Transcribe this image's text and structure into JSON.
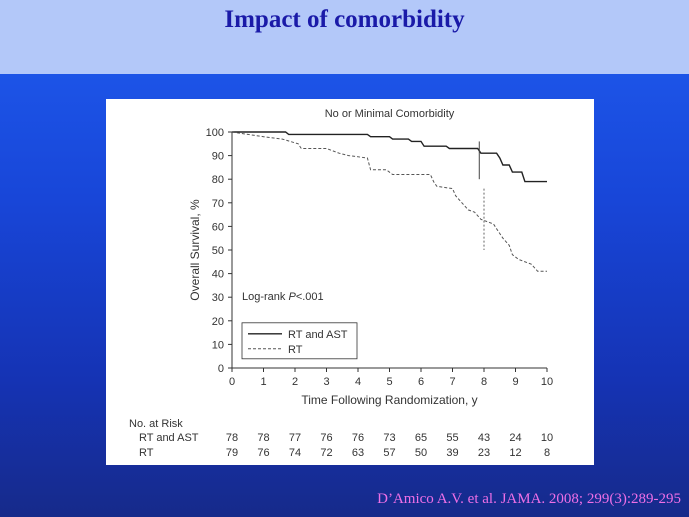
{
  "slide": {
    "title": "Impact of comorbidity",
    "citation": "D’Amico A.V. et al. JAMA. 2008; 299(3):289-295"
  },
  "colors": {
    "header_bg": "#b3c8f9",
    "title": "#1a1aa8",
    "citation": "#ee6fe6",
    "background_top": "#1f5cf0",
    "background_bottom": "#162a8a"
  },
  "chart_data": {
    "type": "line",
    "title": "No or Minimal Comorbidity",
    "xlabel": "Time Following Randomization, y",
    "ylabel": "Overall Survival, %",
    "xlim": [
      0,
      10
    ],
    "ylim": [
      0,
      100
    ],
    "xticks": [
      "0",
      "1",
      "2",
      "3",
      "4",
      "5",
      "6",
      "7",
      "8",
      "9",
      "10"
    ],
    "yticks": [
      "0",
      "10",
      "20",
      "30",
      "40",
      "50",
      "60",
      "70",
      "80",
      "90",
      "100"
    ],
    "annotation_prefix": "Log-rank ",
    "annotation_p": "P",
    "annotation_value": "<.001",
    "legend_position": "lower-left",
    "series": [
      {
        "name": "RT and AST",
        "style": "solid",
        "points": [
          [
            0,
            100
          ],
          [
            1.7,
            100
          ],
          [
            1.8,
            99
          ],
          [
            4.3,
            99
          ],
          [
            4.4,
            98
          ],
          [
            5.0,
            98
          ],
          [
            5.1,
            97
          ],
          [
            5.6,
            97
          ],
          [
            5.7,
            96
          ],
          [
            6.0,
            96
          ],
          [
            6.1,
            94
          ],
          [
            6.8,
            94
          ],
          [
            6.9,
            93
          ],
          [
            7.8,
            93
          ],
          [
            7.9,
            91
          ],
          [
            8.4,
            91
          ],
          [
            8.5,
            89
          ],
          [
            8.6,
            86
          ],
          [
            8.8,
            86
          ],
          [
            8.9,
            83
          ],
          [
            9.2,
            83
          ],
          [
            9.3,
            79
          ],
          [
            10.0,
            79
          ]
        ],
        "censor": {
          "x": 7.85,
          "y_from": 96,
          "y_to": 80
        }
      },
      {
        "name": "RT",
        "style": "dashed",
        "points": [
          [
            0,
            100
          ],
          [
            0.5,
            99
          ],
          [
            1.0,
            98
          ],
          [
            1.6,
            97
          ],
          [
            2.1,
            95
          ],
          [
            2.2,
            93
          ],
          [
            3.0,
            93
          ],
          [
            3.4,
            91
          ],
          [
            3.7,
            90
          ],
          [
            4.3,
            89
          ],
          [
            4.4,
            84
          ],
          [
            4.9,
            84
          ],
          [
            5.1,
            82
          ],
          [
            6.3,
            82
          ],
          [
            6.4,
            79
          ],
          [
            6.5,
            77
          ],
          [
            7.0,
            76
          ],
          [
            7.1,
            73
          ],
          [
            7.3,
            70
          ],
          [
            7.5,
            67
          ],
          [
            7.7,
            66
          ],
          [
            7.9,
            63
          ],
          [
            8.3,
            61
          ],
          [
            8.4,
            59
          ],
          [
            8.6,
            55
          ],
          [
            8.8,
            52
          ],
          [
            8.9,
            48
          ],
          [
            9.1,
            46
          ],
          [
            9.5,
            44
          ],
          [
            9.7,
            41
          ],
          [
            10.0,
            41
          ]
        ],
        "censor": {
          "x": 8.0,
          "y_from": 76,
          "y_to": 50
        }
      }
    ],
    "risk_table": {
      "heading": "No. at Risk",
      "rows": [
        {
          "label": "RT and AST",
          "values": [
            "78",
            "78",
            "77",
            "76",
            "76",
            "73",
            "65",
            "55",
            "43",
            "24",
            "10"
          ]
        },
        {
          "label": "RT",
          "values": [
            "79",
            "76",
            "74",
            "72",
            "63",
            "57",
            "50",
            "39",
            "23",
            "12",
            "8"
          ]
        }
      ]
    }
  }
}
